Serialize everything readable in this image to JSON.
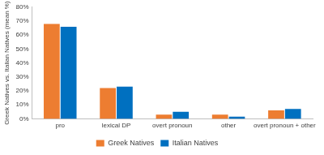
{
  "chart_data": {
    "type": "bar",
    "y_label": "Greek Natives vs. Italian Natives (mean %)",
    "categories": [
      "pro",
      "lexical DP",
      "overt pronoun",
      "other",
      "overt pronoun + other"
    ],
    "series": [
      {
        "name": "Greek Natives",
        "color": "#ed7d31",
        "values": [
          68,
          22,
          3,
          3,
          6
        ]
      },
      {
        "name": "Italian Natives",
        "color": "#0070c0",
        "values": [
          66,
          23,
          5,
          1.5,
          7
        ]
      }
    ],
    "ylim": [
      0,
      80
    ],
    "yticks": [
      {
        "value": 0,
        "label": "0%"
      },
      {
        "value": 10,
        "label": "10%"
      },
      {
        "value": 20,
        "label": "20%"
      },
      {
        "value": 30,
        "label": "30%"
      },
      {
        "value": 40,
        "label": "40%"
      },
      {
        "value": 50,
        "label": "50%"
      },
      {
        "value": 60,
        "label": "60%"
      },
      {
        "value": 70,
        "label": "70%"
      },
      {
        "value": 80,
        "label": "80%"
      }
    ],
    "grid": false,
    "legend": "bottom"
  }
}
